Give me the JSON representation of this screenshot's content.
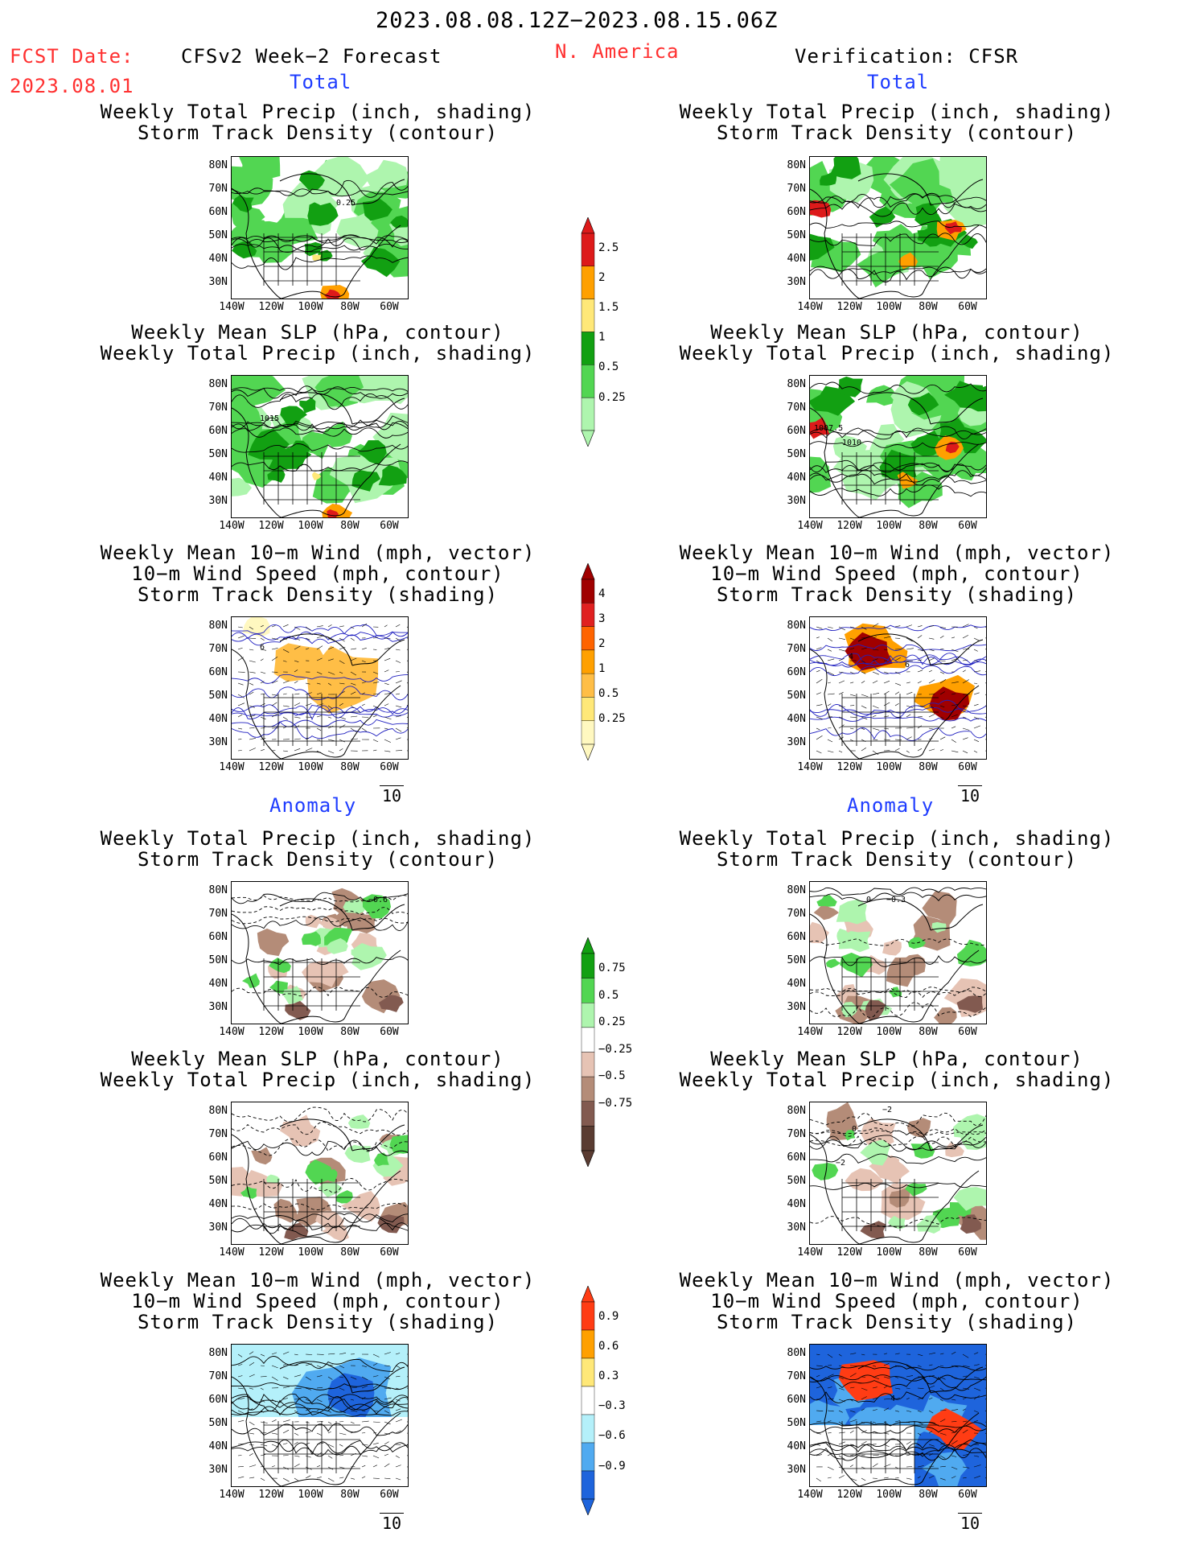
{
  "header": {
    "date_range": "2023.08.08.12Z−2023.08.15.06Z",
    "fcst_label": "FCST Date:",
    "fcst_date": "2023.08.01",
    "left_title": "CFSv2 Week−2 Forecast",
    "region": "N. America",
    "right_title": "Verification: CFSR"
  },
  "sections": {
    "total": "Total",
    "anomaly": "Anomaly"
  },
  "panel_titles": {
    "precip_storm": [
      "Weekly Total Precip (inch, shading)",
      "Storm Track Density (contour)"
    ],
    "slp_precip": [
      "Weekly Mean SLP (hPa, contour)",
      "Weekly Total Precip (inch, shading)"
    ],
    "wind": [
      "Weekly Mean 10−m Wind (mph, vector)",
      "10−m Wind Speed (mph, contour)",
      "Storm Track Density (shading)"
    ]
  },
  "axes": {
    "lat_labels": [
      "80N",
      "70N",
      "60N",
      "50N",
      "40N",
      "30N"
    ],
    "lon_labels": [
      "140W",
      "120W",
      "100W",
      "80W",
      "60W"
    ],
    "vector_ref": "10"
  },
  "contour_labels": {
    "fc_total_precip": "0.25",
    "fc_total_slp": "1015",
    "vf_total_slp_a": "1007.5",
    "vf_total_slp_b": "1010",
    "fc_anom_precip": "−0.6",
    "vf_anom_precip_a": "0",
    "vf_anom_precip_b": "−0.3",
    "vf_anom_slp_a": "−2",
    "vf_anom_slp_b": "0",
    "vf_anom_slp_c": "−2",
    "vf_total_wind_a": "4",
    "vf_total_wind_b": "6",
    "fc_total_wind": "6",
    "vf_anom_wind": "4"
  },
  "colorbars": {
    "precip_total": {
      "labels": [
        "2.5",
        "2",
        "1.5",
        "1",
        "0.5",
        "0.25"
      ],
      "colors": [
        "#dd1a1a",
        "#ffa000",
        "#ffe878",
        "#12a012",
        "#52d652",
        "#aef5ae"
      ]
    },
    "storm_total": {
      "labels": [
        "4",
        "3",
        "2",
        "1",
        "0.5",
        "0.25"
      ],
      "colors": [
        "#a00000",
        "#e02020",
        "#ff6400",
        "#ffa000",
        "#ffbe46",
        "#ffe878",
        "#fff8c0"
      ]
    },
    "precip_anom": {
      "labels": [
        "0.75",
        "0.5",
        "0.25",
        "−0.25",
        "−0.5",
        "−0.75"
      ],
      "colors": [
        "#12a012",
        "#52d652",
        "#aef5ae",
        "#ffffff",
        "#e6c3b4",
        "#b48c78",
        "#825a50",
        "#5a3c32"
      ]
    },
    "storm_anom": {
      "labels": [
        "0.9",
        "0.6",
        "0.3",
        "−0.3",
        "−0.6",
        "−0.9"
      ],
      "colors": [
        "#ff3c14",
        "#ffa000",
        "#ffe878",
        "#ffffff",
        "#b4f0fa",
        "#50aaf0",
        "#1e64dc"
      ]
    }
  }
}
